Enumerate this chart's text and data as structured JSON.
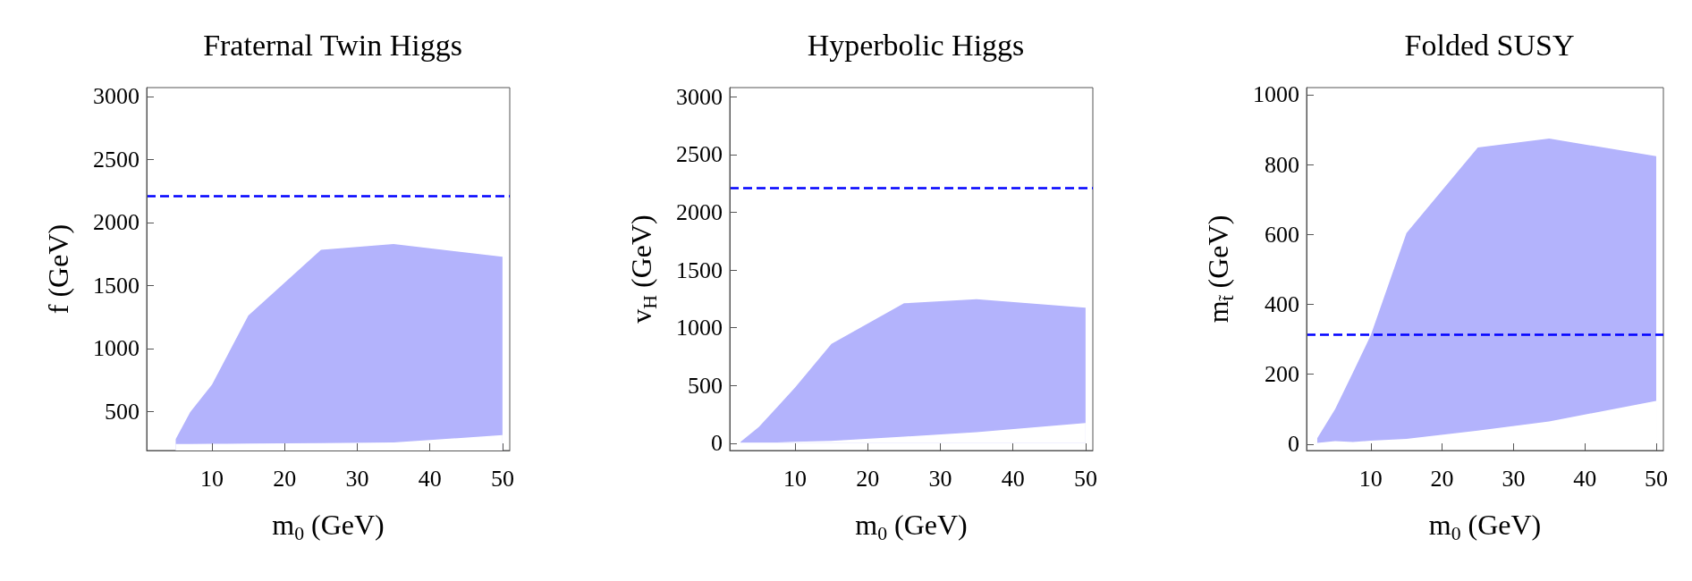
{
  "chart_data": [
    {
      "type": "area",
      "title": "Fraternal Twin Higgs",
      "xlabel": "m$_{0}$ (GeV)",
      "ylabel": "f (GeV)",
      "x": [
        5,
        7,
        10,
        15,
        25,
        35,
        50
      ],
      "xlim": [
        1,
        51
      ],
      "xticks": [
        10,
        20,
        30,
        40,
        50
      ],
      "ylim": [
        190,
        3070
      ],
      "yticks": [
        500,
        1000,
        1500,
        2000,
        2500,
        3000
      ],
      "grid": false,
      "series": [
        {
          "color": "#b3b3fc",
          "values": [
            281,
            495,
            714,
            1262,
            1782,
            1829,
            1727
          ]
        },
        {
          "color": "#ffffff",
          "values": [
            242,
            242,
            243,
            245,
            248,
            253,
            313
          ]
        }
      ],
      "ref_lines": [
        {
          "axis": "y",
          "value": 2210,
          "color": "#0000ff",
          "line_style": "dashed"
        }
      ]
    },
    {
      "type": "area",
      "title": "Hyperbolic Higgs",
      "xlabel": "m$_{0}$ (GeV)",
      "ylabel": "v$_{H}$ (GeV)",
      "x": [
        2.5,
        5,
        7.5,
        10,
        15,
        25,
        35,
        50
      ],
      "xlim": [
        1,
        51
      ],
      "xticks": [
        10,
        20,
        30,
        40,
        50
      ],
      "ylim": [
        -63,
        3080
      ],
      "yticks": [
        0,
        500,
        1000,
        1500,
        2000,
        2500,
        3000
      ],
      "grid": false,
      "series": [
        {
          "color": "#b3b3fc",
          "values": [
            12,
            140,
            310,
            483,
            861,
            1212,
            1248,
            1174
          ]
        },
        {
          "color": "#ffffff",
          "values": [
            6,
            6,
            6,
            12,
            21,
            57,
            95,
            176
          ]
        }
      ],
      "ref_lines": [
        {
          "axis": "y",
          "value": 2210,
          "color": "#0000ff",
          "line_style": "dashed"
        }
      ]
    },
    {
      "type": "area",
      "title": "Folded SUSY",
      "xlabel": "m$_{0}$ (GeV)",
      "ylabel": "m$_{t̃}$ (GeV)",
      "x": [
        2.5,
        5,
        7.5,
        10,
        15,
        25,
        35,
        50
      ],
      "xlim": [
        1,
        51
      ],
      "xticks": [
        10,
        20,
        30,
        40,
        50
      ],
      "ylim": [
        -18,
        1020
      ],
      "yticks": [
        0,
        200,
        400,
        600,
        800,
        1000
      ],
      "grid": false,
      "series": [
        {
          "color": "#b3b3fc",
          "values": [
            17,
            100,
            205,
            312,
            604,
            849,
            874,
            824
          ]
        },
        {
          "color": "#ffffff",
          "values": [
            4,
            9,
            6,
            10,
            15,
            39,
            65,
            124
          ]
        }
      ],
      "ref_lines": [
        {
          "axis": "y",
          "value": 313,
          "color": "#0000ff",
          "line_style": "dashed"
        }
      ]
    }
  ]
}
